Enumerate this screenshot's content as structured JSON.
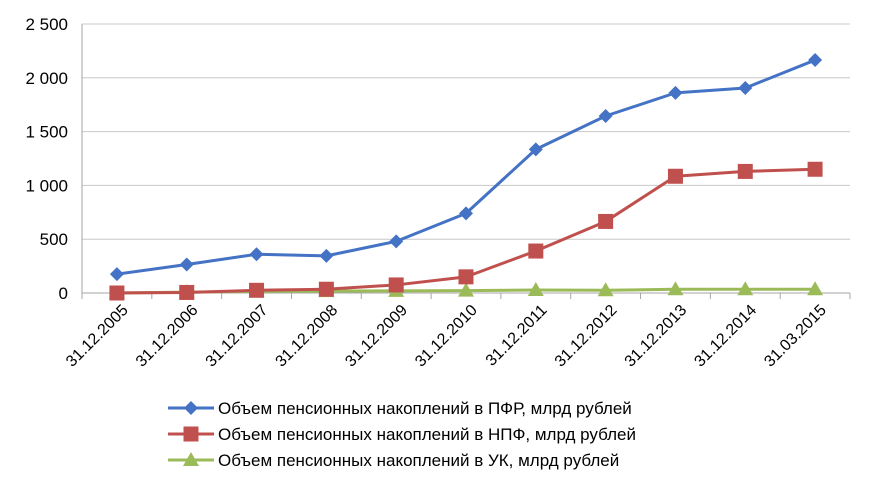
{
  "chart_data": {
    "type": "line",
    "title": "",
    "xlabel": "",
    "ylabel": "",
    "categories": [
      "31.12.2005",
      "31.12.2006",
      "31.12.2007",
      "31.12.2008",
      "31.12.2009",
      "31.12.2010",
      "31.12.2011",
      "31.12.2012",
      "31.12.2013",
      "31.12.2014",
      "31.03.2015"
    ],
    "ylim": [
      0,
      2500
    ],
    "yticks": [
      0,
      500,
      1000,
      1500,
      2000,
      2500
    ],
    "ytick_labels": [
      "0",
      "500",
      "1 000",
      "1 500",
      "2 000",
      "2 500"
    ],
    "grid": "horizontal",
    "legend_position": "bottom",
    "series": [
      {
        "name": "Объем пенсионных накоплений в ПФР, млрд рублей",
        "color": "#4472C4",
        "marker": "diamond",
        "values": [
          175,
          265,
          360,
          345,
          480,
          740,
          1335,
          1645,
          1860,
          1905,
          2165
        ]
      },
      {
        "name": "Объем пенсионных накоплений в НПФ, млрд рублей",
        "color": "#C0504D",
        "marker": "square",
        "values": [
          0,
          5,
          25,
          35,
          75,
          150,
          390,
          665,
          1085,
          1130,
          1150
        ]
      },
      {
        "name": "Объем пенсионных накоплений в УК, млрд рублей",
        "color": "#9BBB59",
        "marker": "triangle",
        "values": [
          0,
          8,
          15,
          17,
          20,
          22,
          28,
          25,
          35,
          35,
          35
        ]
      }
    ]
  }
}
